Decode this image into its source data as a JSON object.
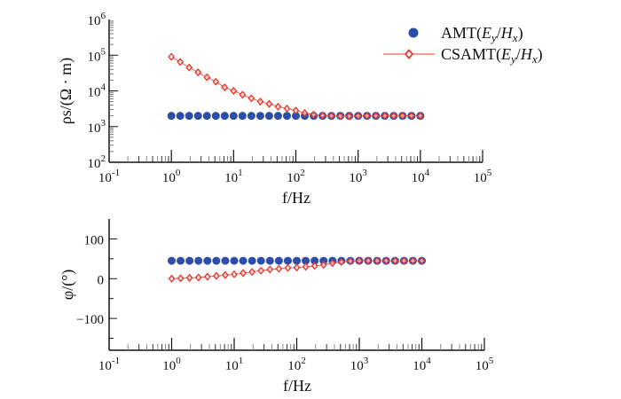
{
  "chart_data": [
    {
      "type": "scatter",
      "xscale": "log",
      "yscale": "log",
      "xlabel": "f/Hz",
      "ylabel": "ρs/(Ω · m)",
      "xlim": [
        0.1,
        100000
      ],
      "ylim": [
        100,
        1000000
      ],
      "xticks": [
        "10-1",
        "100",
        "101",
        "102",
        "103",
        "104",
        "105"
      ],
      "yticks": [
        "102",
        "103",
        "104",
        "105",
        "106"
      ],
      "grid": false,
      "legend": "top-right",
      "x": [
        1,
        1.389,
        1.931,
        2.683,
        3.728,
        5.179,
        7.197,
        10,
        13.89,
        19.31,
        26.83,
        37.28,
        51.79,
        71.97,
        100,
        138.9,
        193.1,
        268.3,
        372.8,
        517.9,
        719.7,
        1000,
        1389,
        1931,
        2683,
        3728,
        5179,
        7197,
        10000
      ],
      "series": [
        {
          "name": "AMT(Ey/Hx)",
          "color": "#2c4da8",
          "marker": "filled-circle",
          "values": [
            2000,
            2000,
            2000,
            2000,
            2000,
            2000,
            2000,
            2000,
            2000,
            2000,
            2000,
            2000,
            2000,
            2000,
            2000,
            2000,
            2000,
            2000,
            2000,
            2000,
            2000,
            2000,
            2000,
            2000,
            2000,
            2000,
            2000,
            2000,
            2000
          ]
        },
        {
          "name": "CSAMT(Ey/Hx)",
          "color": "#e8392e",
          "marker": "open-diamond-line",
          "values": [
            90000,
            65000,
            45000,
            33000,
            24000,
            18000,
            12500,
            10000,
            7800,
            6200,
            5000,
            4300,
            3600,
            3200,
            2800,
            2400,
            2150,
            2050,
            2000,
            1950,
            1950,
            1980,
            2000,
            2000,
            2000,
            2000,
            2000,
            2000,
            2000
          ]
        }
      ]
    },
    {
      "type": "scatter",
      "xscale": "log",
      "xlabel": "f/Hz",
      "ylabel": "φ/(°)",
      "xlim": [
        0.1,
        100000
      ],
      "ylim": [
        -180,
        150
      ],
      "xticks": [
        "10-1",
        "100",
        "101",
        "102",
        "103",
        "104",
        "105"
      ],
      "yticks": [
        "100",
        "0",
        "−100"
      ],
      "grid": false,
      "x": [
        1,
        1.389,
        1.931,
        2.683,
        3.728,
        5.179,
        7.197,
        10,
        13.89,
        19.31,
        26.83,
        37.28,
        51.79,
        71.97,
        100,
        138.9,
        193.1,
        268.3,
        372.8,
        517.9,
        719.7,
        1000,
        1389,
        1931,
        2683,
        3728,
        5179,
        7197,
        10000
      ],
      "series": [
        {
          "name": "AMT(Ey/Hx)",
          "color": "#2c4da8",
          "marker": "filled-circle",
          "values": [
            45,
            45,
            45,
            45,
            45,
            45,
            45,
            45,
            45,
            45,
            45,
            45,
            45,
            45,
            45,
            45,
            45,
            45,
            45,
            45,
            45,
            45,
            45,
            45,
            45,
            45,
            45,
            45,
            45
          ]
        },
        {
          "name": "CSAMT(Ey/Hx)",
          "color": "#e8392e",
          "marker": "open-diamond-line",
          "values": [
            0,
            1,
            2,
            3,
            5,
            7,
            9,
            11,
            14,
            17,
            20,
            23,
            25,
            27,
            28,
            30,
            32,
            35,
            39,
            42,
            44,
            45,
            45,
            45,
            45,
            45,
            45,
            45,
            45
          ]
        }
      ]
    }
  ]
}
